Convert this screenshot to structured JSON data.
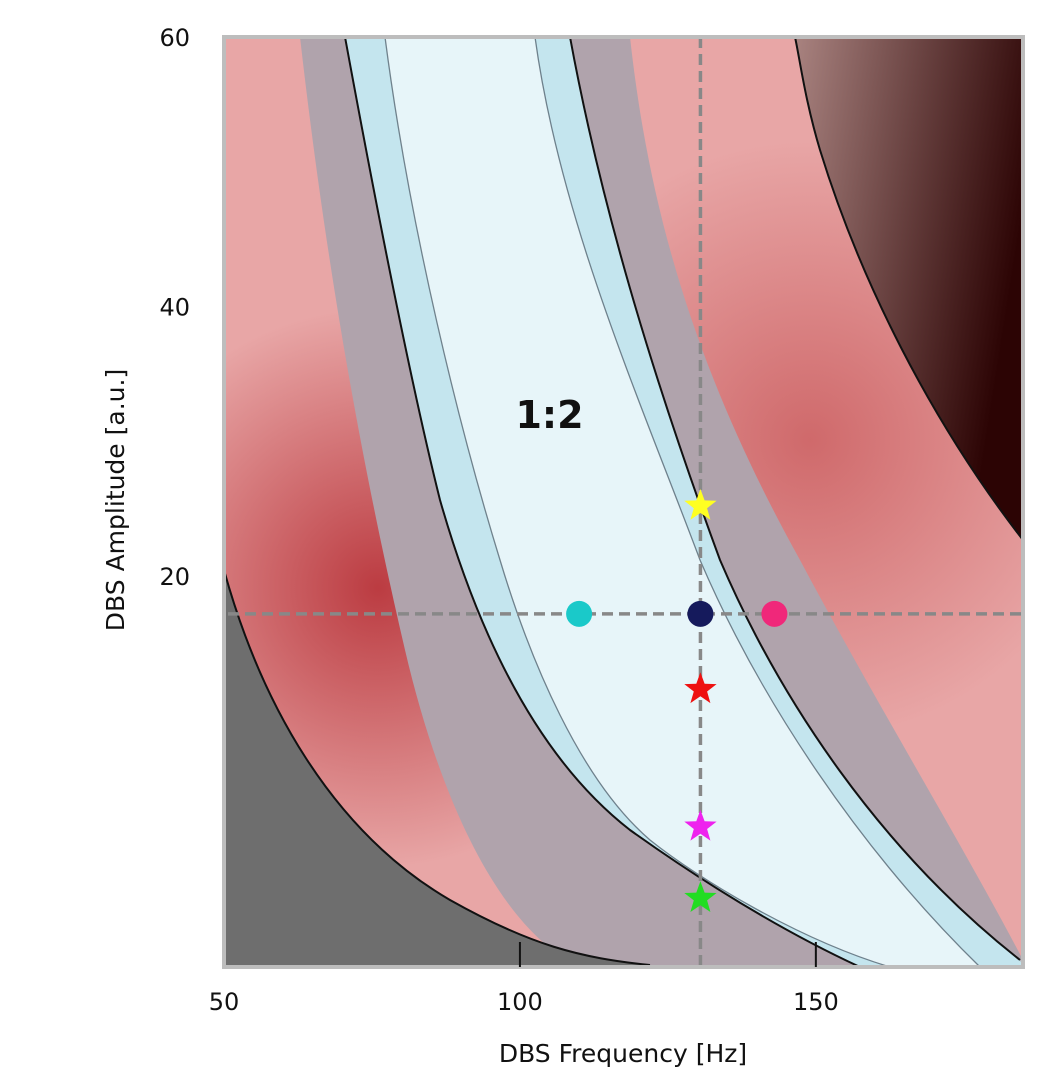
{
  "chart_data": {
    "type": "heatmap",
    "xlabel": "DBS Frequency [Hz]",
    "ylabel": "DBS Amplitude [a.u.]",
    "xlim": [
      50,
      185
    ],
    "ylim": [
      -9,
      60
    ],
    "x_ticks": [
      50,
      100,
      150
    ],
    "y_ticks": [
      20,
      40,
      60
    ],
    "grid": false,
    "region_labels": [
      {
        "text": "1:2",
        "x": 105,
        "y": 31
      }
    ],
    "crosshair": {
      "x": 130.5,
      "y": 17.2
    },
    "markers": [
      {
        "shape": "circle",
        "color": "#1ac9c9",
        "x": 110,
        "y": 17.2
      },
      {
        "shape": "circle",
        "color": "#151a5c",
        "x": 130.5,
        "y": 17.2
      },
      {
        "shape": "circle",
        "color": "#f0287a",
        "x": 143,
        "y": 17.2
      },
      {
        "shape": "star",
        "color": "#ffff22",
        "x": 130.5,
        "y": 25.2
      },
      {
        "shape": "star",
        "color": "#ee1111",
        "x": 130.5,
        "y": 11.6
      },
      {
        "shape": "star",
        "color": "#ee22ee",
        "x": 130.5,
        "y": 1.4
      },
      {
        "shape": "star",
        "color": "#22dd22",
        "x": 130.5,
        "y": -3.9
      }
    ],
    "colors": {
      "background": "#e8a6a6",
      "dark_region": "#6e6e6e",
      "gray_band": "#b0a3ac",
      "cyan_band": "#c4e5ee",
      "core": "#e7f5f9",
      "crosshair": "#888888"
    }
  }
}
